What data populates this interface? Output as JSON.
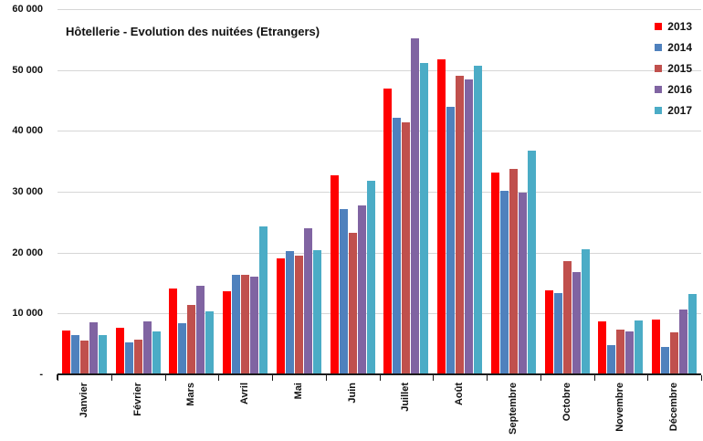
{
  "chart_data": {
    "type": "bar",
    "title": "Hôtellerie - Evolution des nuitées (Etrangers)",
    "categories": [
      "Janvier",
      "Février",
      "Mars",
      "Avril",
      "Mai",
      "Juin",
      "Juillet",
      "Août",
      "Septembre",
      "Octobre",
      "Novembre",
      "Décembre"
    ],
    "series": [
      {
        "name": "2013",
        "color": "#FF0000",
        "values": [
          7200,
          7600,
          14100,
          13600,
          19000,
          32700,
          47000,
          51700,
          33200,
          13800,
          8700,
          9000
        ]
      },
      {
        "name": "2014",
        "color": "#4F81BD",
        "values": [
          6500,
          5300,
          8400,
          16400,
          20300,
          27200,
          42200,
          43900,
          30200,
          13300,
          4800,
          4500
        ]
      },
      {
        "name": "2015",
        "color": "#C0504D",
        "values": [
          5500,
          5700,
          11400,
          16300,
          19500,
          23200,
          41400,
          49100,
          33700,
          18600,
          7400,
          6900
        ]
      },
      {
        "name": "2016",
        "color": "#8064A2",
        "values": [
          8500,
          8700,
          14600,
          16100,
          24000,
          27800,
          55200,
          48500,
          29800,
          16800,
          7000,
          10600
        ]
      },
      {
        "name": "2017",
        "color": "#4BACC6",
        "values": [
          6400,
          7100,
          10300,
          24300,
          20400,
          31800,
          51100,
          50700,
          36800,
          20600,
          8900,
          13200
        ]
      }
    ],
    "xlabel": "",
    "ylabel": "",
    "ylim": [
      0,
      60000
    ],
    "ytick_step": 10000,
    "ytick_labels_top_to_bottom": [
      "60 000",
      "50 000",
      "40 000",
      "30 000",
      "20 000",
      "10 000",
      "-"
    ],
    "zero_label": "-",
    "grid": true,
    "legend_position": "top-right",
    "x_labels_rotated": true
  },
  "colors": {
    "background": "#FFFFFF",
    "gridline": "#D6D6D6",
    "axis_line": "#1A1A1A",
    "text": "#111111"
  }
}
